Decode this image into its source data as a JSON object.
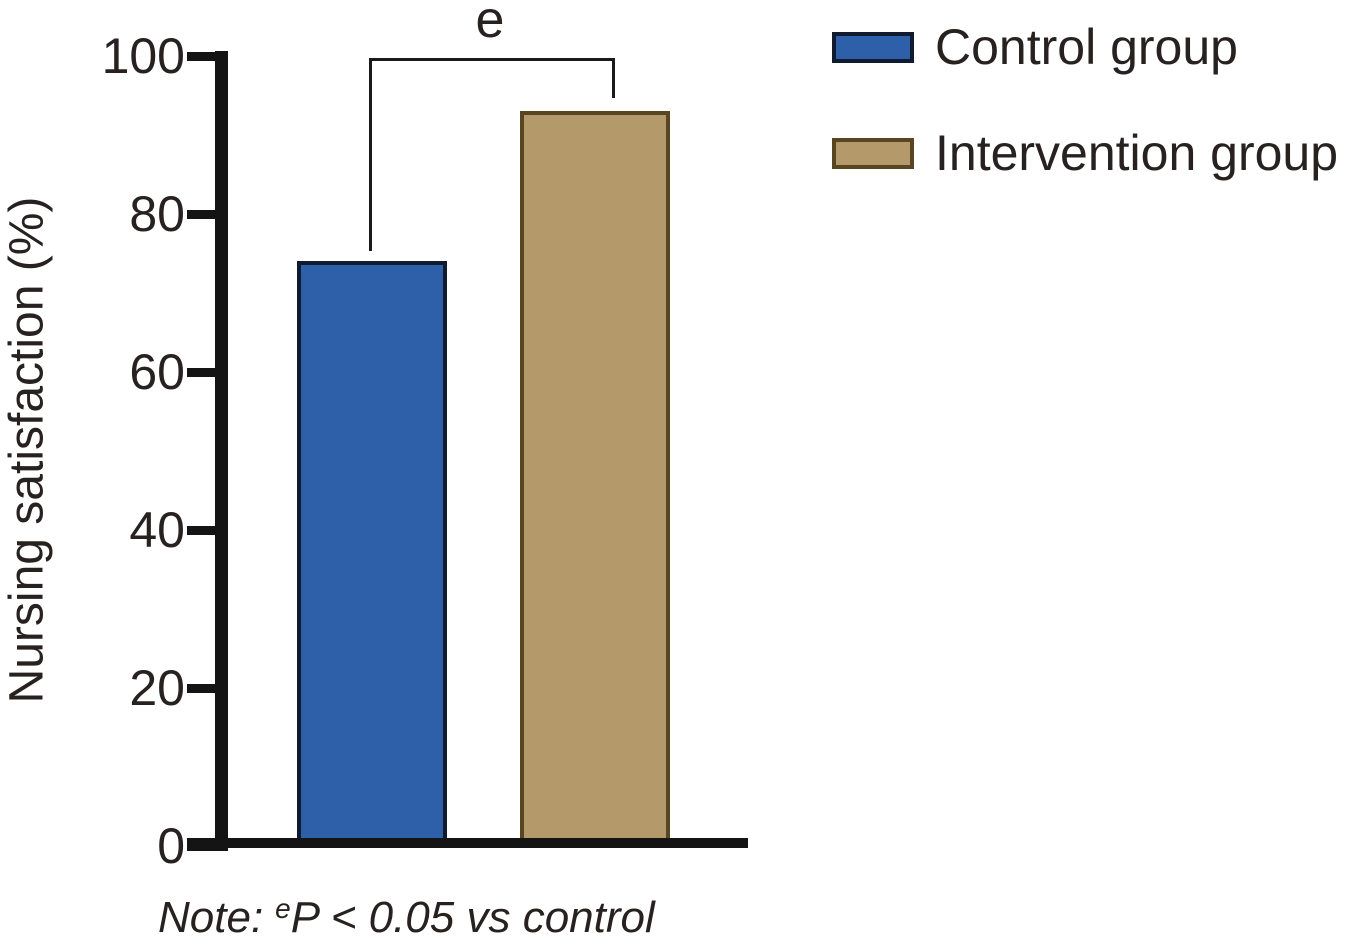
{
  "chart_data": {
    "type": "bar",
    "categories": [
      "Control group",
      "Intervention group"
    ],
    "values": [
      74,
      93
    ],
    "title": "",
    "xlabel": "",
    "ylabel": "Nursing satisfaction (%)",
    "ylim": [
      0,
      100
    ],
    "yticks": [
      0,
      20,
      40,
      60,
      80,
      100
    ],
    "grid": false,
    "legend_position": "top-right",
    "background_color": "#ffffff",
    "axis_color": "#141414",
    "text_color": "#272120",
    "bar_colors": [
      "#2e5fa9",
      "#b49a6b"
    ],
    "bar_border_colors": [
      "#111b30",
      "#574621"
    ],
    "significance": {
      "label": "e",
      "between": [
        "Control group",
        "Intervention group"
      ]
    },
    "legend": [
      {
        "label": "Control group",
        "color": "#2e5fa9",
        "border": "#111b30"
      },
      {
        "label": "Intervention group",
        "color": "#b49a6b",
        "border": "#574621"
      }
    ],
    "note": {
      "prefix": "Note:",
      "sup": "e",
      "rest": "P < 0.05 vs control"
    }
  }
}
